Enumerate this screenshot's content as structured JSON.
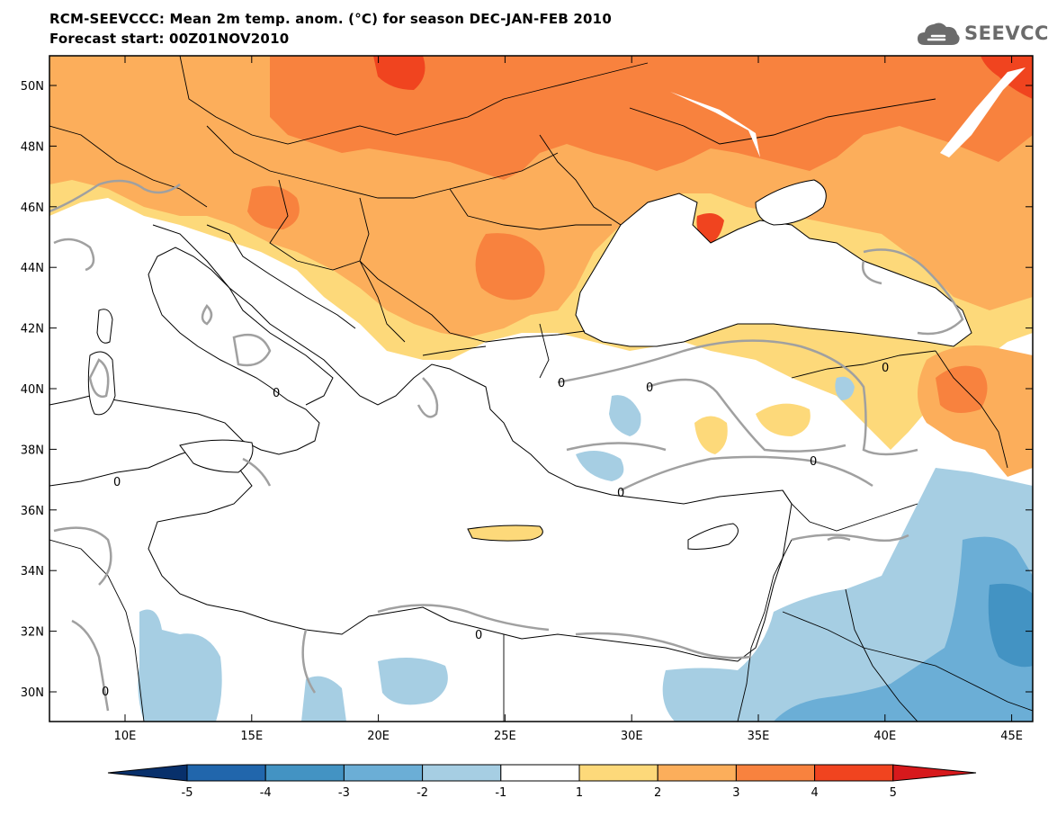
{
  "header": {
    "title_line1": "RCM-SEEVCCC: Mean 2m temp. anom. (°C) for season DEC-JAN-FEB 2010",
    "title_line2": "Forecast start: 00Z01NOV2010",
    "logo_text": "SEEVCCC"
  },
  "map": {
    "lat_labels": [
      "50N",
      "48N",
      "46N",
      "44N",
      "42N",
      "40N",
      "38N",
      "36N",
      "34N",
      "32N",
      "30N"
    ],
    "lon_labels": [
      "10E",
      "15E",
      "20E",
      "25E",
      "30E",
      "35E",
      "40E",
      "45E"
    ],
    "contour_label": "0"
  },
  "colorbar": {
    "labels": [
      "-5",
      "-4",
      "-3",
      "-2",
      "-1",
      "1",
      "2",
      "3",
      "4",
      "5"
    ],
    "colors": [
      "#08306b",
      "#2166ac",
      "#4393c3",
      "#6baed6",
      "#a6cee3",
      "#ffffff",
      "#fdd97a",
      "#fcae5b",
      "#f8823e",
      "#f0441f",
      "#d7191c"
    ]
  },
  "palette": {
    "land_base": "#ffffff",
    "warm_1": "#fdd97a",
    "warm_2": "#fcae5b",
    "warm_3": "#f8823e",
    "warm_4": "#f0441f",
    "cool_1": "#a6cee3",
    "cool_2": "#6baed6",
    "cool_3": "#4393c3"
  }
}
